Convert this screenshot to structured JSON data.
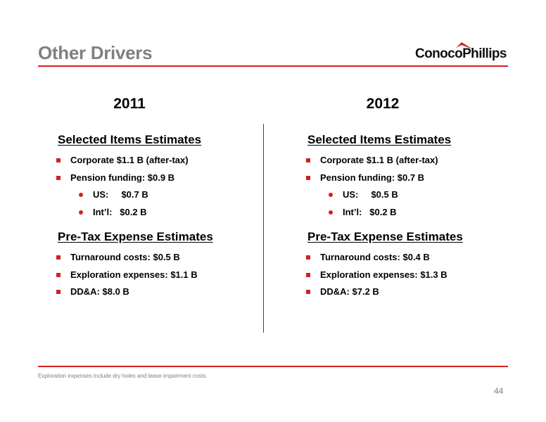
{
  "slide": {
    "title": "Other Drivers",
    "logo_text": "ConocoPhillips",
    "page_number": "44",
    "footnote": "Exploration expenses include dry holes and lease impairment costs."
  },
  "colors": {
    "accent": "#d42020",
    "title_gray": "#808080"
  },
  "columns": [
    {
      "year": "2011",
      "selected_heading": "Selected Items Estimates",
      "selected_items": [
        "Corporate $1.1 B (after-tax)",
        "Pension funding:  $0.9 B"
      ],
      "sub_items": [
        "US:     $0.7 B",
        "Int’l:   $0.2 B"
      ],
      "pretax_heading": "Pre-Tax Expense Estimates",
      "pretax_items": [
        "Turnaround costs:  $0.5 B",
        "Exploration expenses:  $1.1 B",
        "DD&A:  $8.0 B"
      ]
    },
    {
      "year": "2012",
      "selected_heading": "Selected Items Estimates",
      "selected_items": [
        "Corporate $1.1 B (after-tax)",
        "Pension funding:  $0.7 B"
      ],
      "sub_items": [
        "US:     $0.5 B",
        "Int’l:   $0.2 B"
      ],
      "pretax_heading": "Pre-Tax Expense Estimates",
      "pretax_items": [
        "Turnaround costs:  $0.4 B",
        "Exploration expenses:  $1.3 B",
        "DD&A:  $7.2 B"
      ]
    }
  ]
}
